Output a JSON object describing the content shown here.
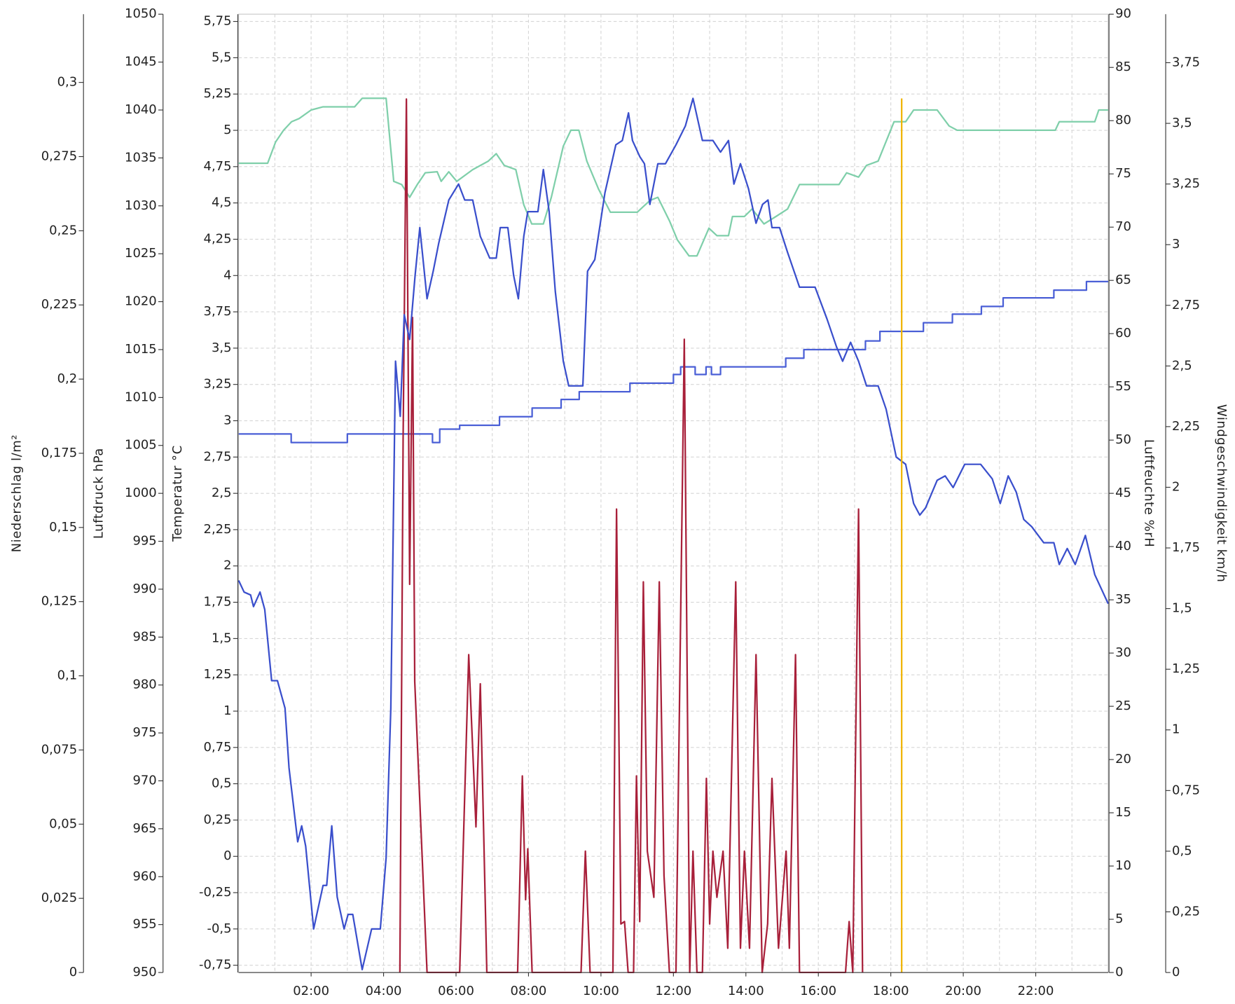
{
  "chart_data": {
    "type": "line",
    "xlim": [
      0,
      24
    ],
    "xticks": [
      {
        "value": 2,
        "label": "02:00"
      },
      {
        "value": 4,
        "label": "04:00"
      },
      {
        "value": 6,
        "label": "06:00"
      },
      {
        "value": 8,
        "label": "08:00"
      },
      {
        "value": 10,
        "label": "10:00"
      },
      {
        "value": 12,
        "label": "12:00"
      },
      {
        "value": 14,
        "label": "14:00"
      },
      {
        "value": 16,
        "label": "16:00"
      },
      {
        "value": 18,
        "label": "18:00"
      },
      {
        "value": 20,
        "label": "20:00"
      },
      {
        "value": 22,
        "label": "22:00"
      }
    ],
    "x_minor_ticks": [
      1,
      3,
      5,
      7,
      9,
      11,
      13,
      15,
      17,
      19,
      21,
      23
    ],
    "grid": true,
    "y_axes": [
      {
        "title": "Niederschlag  l/m²",
        "ylim": [
          0,
          0.323
        ],
        "yticks": [
          0,
          {
            "value": 0.025,
            "label": "0,025"
          },
          {
            "value": 0.05,
            "label": "0,05"
          },
          {
            "value": 0.075,
            "label": "0,075"
          },
          {
            "value": 0.1,
            "label": "0,1"
          },
          {
            "value": 0.125,
            "label": "0,125"
          },
          {
            "value": 0.15,
            "label": "0,15"
          },
          {
            "value": 0.175,
            "label": "0,175"
          },
          {
            "value": 0.2,
            "label": "0,2"
          },
          {
            "value": 0.225,
            "label": "0,225"
          },
          {
            "value": 0.25,
            "label": "0,25"
          },
          {
            "value": 0.275,
            "label": "0,275"
          },
          {
            "value": 0.3,
            "label": "0,3"
          }
        ]
      },
      {
        "title": "Luftdruck  hPa",
        "ylim": [
          950,
          1050
        ],
        "yticks": [
          950,
          955,
          960,
          965,
          970,
          975,
          980,
          985,
          990,
          995,
          1000,
          1005,
          1010,
          1015,
          1020,
          1025,
          1030,
          1035,
          1040,
          1045,
          1050
        ]
      },
      {
        "title": "Temperatur  °C",
        "ylim": [
          -0.8,
          5.8
        ],
        "grid": true,
        "yticks": [
          {
            "value": -0.75,
            "label": "-0,75"
          },
          {
            "value": -0.5,
            "label": "-0,5"
          },
          {
            "value": -0.25,
            "label": "-0,25"
          },
          0,
          {
            "value": 0.25,
            "label": "0,25"
          },
          {
            "value": 0.5,
            "label": "0,5"
          },
          {
            "value": 0.75,
            "label": "0,75"
          },
          1,
          {
            "value": 1.25,
            "label": "1,25"
          },
          {
            "value": 1.5,
            "label": "1,5"
          },
          {
            "value": 1.75,
            "label": "1,75"
          },
          2,
          {
            "value": 2.25,
            "label": "2,25"
          },
          {
            "value": 2.5,
            "label": "2,5"
          },
          {
            "value": 2.75,
            "label": "2,75"
          },
          3,
          {
            "value": 3.25,
            "label": "3,25"
          },
          {
            "value": 3.5,
            "label": "3,5"
          },
          {
            "value": 3.75,
            "label": "3,75"
          },
          4,
          {
            "value": 4.25,
            "label": "4,25"
          },
          {
            "value": 4.5,
            "label": "4,5"
          },
          {
            "value": 4.75,
            "label": "4,75"
          },
          5,
          {
            "value": 5.25,
            "label": "5,25"
          },
          {
            "value": 5.5,
            "label": "5,5"
          },
          {
            "value": 5.75,
            "label": "5,75"
          }
        ]
      },
      {
        "title": "Luftfeuchte  %rH",
        "ylim": [
          0,
          90
        ],
        "yticks": [
          0,
          5,
          10,
          15,
          20,
          25,
          30,
          35,
          40,
          45,
          50,
          55,
          60,
          65,
          70,
          75,
          80,
          85,
          90
        ]
      },
      {
        "title": "Windgeschwindigkeit  km/h",
        "ylim": [
          0,
          3.95
        ],
        "yticks": [
          0,
          {
            "value": 0.25,
            "label": "0,25"
          },
          {
            "value": 0.5,
            "label": "0,5"
          },
          {
            "value": 0.75,
            "label": "0,75"
          },
          1,
          {
            "value": 1.25,
            "label": "1,25"
          },
          {
            "value": 1.5,
            "label": "1,5"
          },
          {
            "value": 1.75,
            "label": "1,75"
          },
          2,
          {
            "value": 2.25,
            "label": "2,25"
          },
          {
            "value": 2.5,
            "label": "2,5"
          },
          {
            "value": 2.75,
            "label": "2,75"
          },
          3,
          {
            "value": 3.25,
            "label": "3,25"
          },
          {
            "value": 3.5,
            "label": "3,5"
          },
          {
            "value": 3.75,
            "label": "3,75"
          }
        ]
      }
    ],
    "series": [
      {
        "axis": 1,
        "color": "#4a5fd6",
        "x": [
          0,
          1.45,
          1.45,
          3.0,
          3.0,
          5.35,
          5.35,
          5.55,
          5.55,
          6.1,
          6.1,
          7.2,
          7.2,
          8.1,
          8.1,
          8.9,
          8.9,
          9.4,
          9.4,
          10.8,
          10.8,
          12.0,
          12.0,
          12.2,
          12.2,
          12.6,
          12.6,
          12.9,
          12.9,
          13.05,
          13.05,
          13.3,
          13.3,
          15.1,
          15.1,
          15.6,
          15.6,
          17.3,
          17.3,
          17.7,
          17.7,
          18.9,
          18.9,
          19.7,
          19.7,
          20.5,
          20.5,
          21.1,
          21.1,
          22.5,
          22.5,
          23.4,
          23.4,
          24
        ],
        "values": [
          1006.2,
          1006.2,
          1005.3,
          1005.3,
          1006.2,
          1006.2,
          1005.3,
          1005.3,
          1006.7,
          1006.7,
          1007.1,
          1007.1,
          1008.0,
          1008.0,
          1008.9,
          1008.9,
          1009.8,
          1009.8,
          1010.6,
          1010.6,
          1011.5,
          1011.5,
          1012.4,
          1012.4,
          1013.2,
          1013.2,
          1012.4,
          1012.4,
          1013.2,
          1013.2,
          1012.4,
          1012.4,
          1013.2,
          1013.2,
          1014.1,
          1014.1,
          1015.0,
          1015.0,
          1015.9,
          1015.9,
          1016.9,
          1016.9,
          1017.8,
          1017.8,
          1018.7,
          1018.7,
          1019.5,
          1019.5,
          1020.4,
          1020.4,
          1021.2,
          1021.2,
          1022.1,
          1022.1
        ]
      },
      {
        "axis": 3,
        "color": "#7fcfaa",
        "x": [
          0,
          0.8,
          1.02,
          1.24,
          1.46,
          1.67,
          2.0,
          2.33,
          3.2,
          3.41,
          4.07,
          4.28,
          4.5,
          4.72,
          4.93,
          5.15,
          5.48,
          5.59,
          5.8,
          6.02,
          6.46,
          6.89,
          7.11,
          7.33,
          7.65,
          7.87,
          8.09,
          8.41,
          8.63,
          8.96,
          9.17,
          9.39,
          9.61,
          9.93,
          10.26,
          11.0,
          11.35,
          11.57,
          11.89,
          12.11,
          12.43,
          12.65,
          12.98,
          13.2,
          13.52,
          13.63,
          13.96,
          14.17,
          14.5,
          14.83,
          15.15,
          15.48,
          16.57,
          16.78,
          17.11,
          17.33,
          17.65,
          18.09,
          18.41,
          18.63,
          19.28,
          19.61,
          19.83,
          22.54,
          22.65,
          23.63,
          23.74,
          24
        ],
        "values": [
          76,
          76,
          78,
          79.1,
          79.9,
          80.2,
          81,
          81.3,
          81.3,
          82.1,
          82.1,
          74.3,
          74,
          72.8,
          74,
          75.1,
          75.2,
          74.3,
          75.2,
          74.3,
          75.4,
          76.2,
          76.9,
          75.8,
          75.4,
          72.1,
          70.3,
          70.3,
          72.8,
          77.6,
          79.1,
          79.1,
          76.2,
          73.6,
          71.4,
          71.4,
          72.5,
          72.8,
          70.6,
          68.8,
          67.3,
          67.3,
          69.9,
          69.2,
          69.2,
          71,
          71,
          71.7,
          70.3,
          71,
          71.7,
          74,
          74,
          75.1,
          74.7,
          75.8,
          76.2,
          79.9,
          79.9,
          81,
          81,
          79.5,
          79.1,
          79.1,
          79.9,
          79.9,
          81,
          81
        ]
      },
      {
        "axis": 4,
        "color": "#a8203a",
        "x": [
          4.45,
          4.54,
          4.63,
          4.72,
          4.8,
          4.86,
          5.2,
          6.1,
          6.35,
          6.55,
          6.67,
          6.85,
          7.7,
          7.83,
          7.92,
          7.98,
          8.1,
          9.45,
          9.57,
          9.7,
          10.33,
          10.43,
          10.55,
          10.65,
          10.75,
          10.9,
          10.98,
          11.07,
          11.17,
          11.28,
          11.46,
          11.61,
          11.74,
          11.89,
          12.07,
          12.3,
          12.45,
          12.54,
          12.65,
          12.8,
          12.91,
          13.0,
          13.09,
          13.2,
          13.37,
          13.5,
          13.72,
          13.85,
          13.96,
          14.1,
          14.28,
          14.45,
          14.6,
          14.72,
          14.9,
          15.11,
          15.2,
          15.37,
          15.48,
          16.75,
          16.85,
          16.95,
          17.11,
          17.22
        ],
        "values": [
          0,
          2.21,
          3.6,
          1.6,
          2.7,
          1.2,
          0,
          0,
          1.31,
          0.6,
          1.19,
          0,
          0,
          0.81,
          0.3,
          0.51,
          0,
          0,
          0.5,
          0,
          0,
          1.91,
          0.2,
          0.21,
          0,
          0,
          0.81,
          0.21,
          1.61,
          0.5,
          0.31,
          1.61,
          0.4,
          0,
          0,
          2.61,
          0,
          0.5,
          0,
          0,
          0.8,
          0.2,
          0.5,
          0.31,
          0.5,
          0.1,
          1.61,
          0.1,
          0.5,
          0.1,
          1.31,
          0,
          0.2,
          0.8,
          0.1,
          0.5,
          0.1,
          1.31,
          0,
          0,
          0.21,
          0,
          1.91,
          0
        ]
      },
      {
        "axis": 2,
        "color": "#3a4fcc",
        "x": [
          0,
          0.15,
          0.33,
          0.41,
          0.59,
          0.72,
          0.91,
          1.07,
          1.28,
          1.39,
          1.63,
          1.74,
          1.85,
          2.07,
          2.33,
          2.43,
          2.57,
          2.72,
          2.91,
          3.02,
          3.15,
          3.41,
          3.67,
          3.91,
          4.07,
          4.2,
          4.33,
          4.46,
          4.57,
          4.72,
          4.87,
          5.0,
          5.2,
          5.37,
          5.52,
          5.8,
          6.07,
          6.24,
          6.46,
          6.67,
          6.93,
          7.11,
          7.22,
          7.43,
          7.59,
          7.72,
          7.87,
          7.98,
          8.26,
          8.41,
          8.57,
          8.74,
          8.96,
          9.11,
          9.35,
          9.5,
          9.63,
          9.83,
          10.11,
          10.41,
          10.59,
          10.76,
          10.87,
          11.07,
          11.2,
          11.35,
          11.57,
          11.78,
          12.07,
          12.33,
          12.54,
          12.8,
          13.09,
          13.3,
          13.52,
          13.67,
          13.85,
          14.07,
          14.28,
          14.46,
          14.61,
          14.72,
          14.93,
          15.15,
          15.48,
          15.91,
          16.24,
          16.5,
          16.67,
          16.89,
          17.11,
          17.33,
          17.65,
          17.87,
          18.15,
          18.41,
          18.63,
          18.8,
          18.96,
          19.28,
          19.5,
          19.72,
          20.04,
          20.48,
          20.8,
          21.02,
          21.24,
          21.46,
          21.67,
          21.89,
          22.22,
          22.5,
          22.65,
          22.87,
          23.09,
          23.37,
          23.63,
          24
        ],
        "values": [
          1.9,
          1.82,
          1.8,
          1.72,
          1.82,
          1.7,
          1.21,
          1.21,
          1.02,
          0.61,
          0.1,
          0.21,
          0.07,
          -0.5,
          -0.2,
          -0.2,
          0.21,
          -0.28,
          -0.5,
          -0.4,
          -0.4,
          -0.78,
          -0.5,
          -0.5,
          -0.01,
          1.02,
          3.41,
          3.03,
          3.73,
          3.56,
          4.0,
          4.33,
          3.84,
          4.03,
          4.22,
          4.52,
          4.63,
          4.52,
          4.52,
          4.27,
          4.12,
          4.12,
          4.33,
          4.33,
          4.0,
          3.84,
          4.27,
          4.44,
          4.44,
          4.73,
          4.44,
          3.89,
          3.41,
          3.24,
          3.24,
          3.24,
          4.03,
          4.11,
          4.57,
          4.9,
          4.93,
          5.12,
          4.93,
          4.82,
          4.77,
          4.49,
          4.77,
          4.77,
          4.9,
          5.03,
          5.22,
          4.93,
          4.93,
          4.85,
          4.93,
          4.63,
          4.77,
          4.6,
          4.36,
          4.49,
          4.52,
          4.33,
          4.33,
          4.16,
          3.92,
          3.92,
          3.7,
          3.51,
          3.41,
          3.54,
          3.41,
          3.24,
          3.24,
          3.08,
          2.75,
          2.7,
          2.43,
          2.35,
          2.4,
          2.59,
          2.62,
          2.54,
          2.7,
          2.7,
          2.6,
          2.43,
          2.62,
          2.51,
          2.32,
          2.27,
          2.16,
          2.16,
          2.01,
          2.12,
          2.01,
          2.21,
          1.94,
          1.74
        ]
      }
    ],
    "marker_line": {
      "x": 18.3,
      "color": "#f0b400"
    }
  }
}
